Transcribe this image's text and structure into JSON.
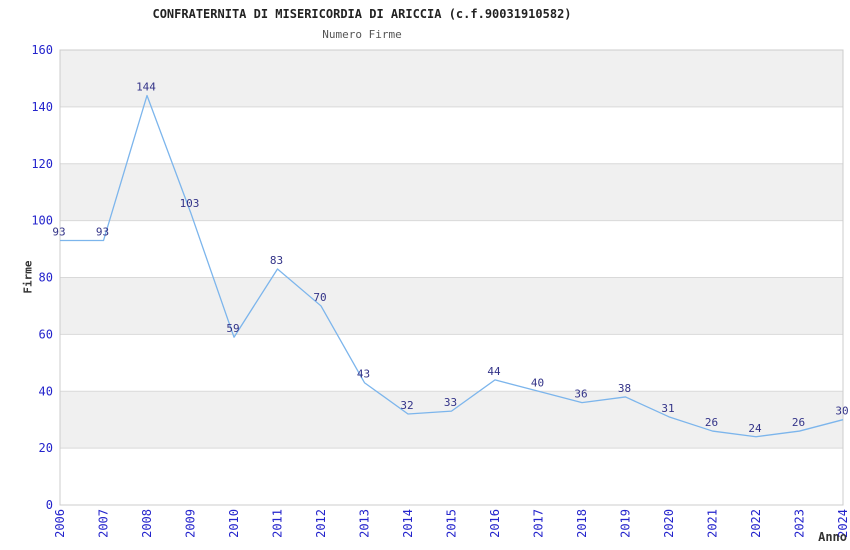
{
  "chart_data": {
    "type": "line",
    "title": "CONFRATERNITA DI MISERICORDIA DI ARICCIA (c.f.90031910582)",
    "subtitle": "Numero Firme",
    "xlabel": "Anno",
    "ylabel": "Firme",
    "x": [
      2006,
      2007,
      2008,
      2009,
      2010,
      2011,
      2012,
      2013,
      2014,
      2015,
      2016,
      2017,
      2018,
      2019,
      2020,
      2021,
      2022,
      2023,
      2024
    ],
    "series": [
      {
        "name": "Numero Firme",
        "values": [
          93,
          93,
          144,
          103,
          59,
          83,
          70,
          43,
          32,
          33,
          44,
          40,
          36,
          38,
          31,
          26,
          24,
          26,
          30
        ]
      }
    ],
    "ylim": [
      0,
      160
    ],
    "ytick_step": 20,
    "grid": true,
    "band_fill": true,
    "legend": "none",
    "data_labels_visible": true,
    "colors": {
      "line": "#7cb5ec",
      "tick_label": "#2424cc",
      "data_label": "#333388",
      "band": "#f0f0f0",
      "gridline": "#d9d9d9",
      "plot_border": "#cccccc",
      "title": "#222222",
      "subtitle": "#555555",
      "axis_title": "#333333",
      "background": "#ffffff"
    }
  }
}
